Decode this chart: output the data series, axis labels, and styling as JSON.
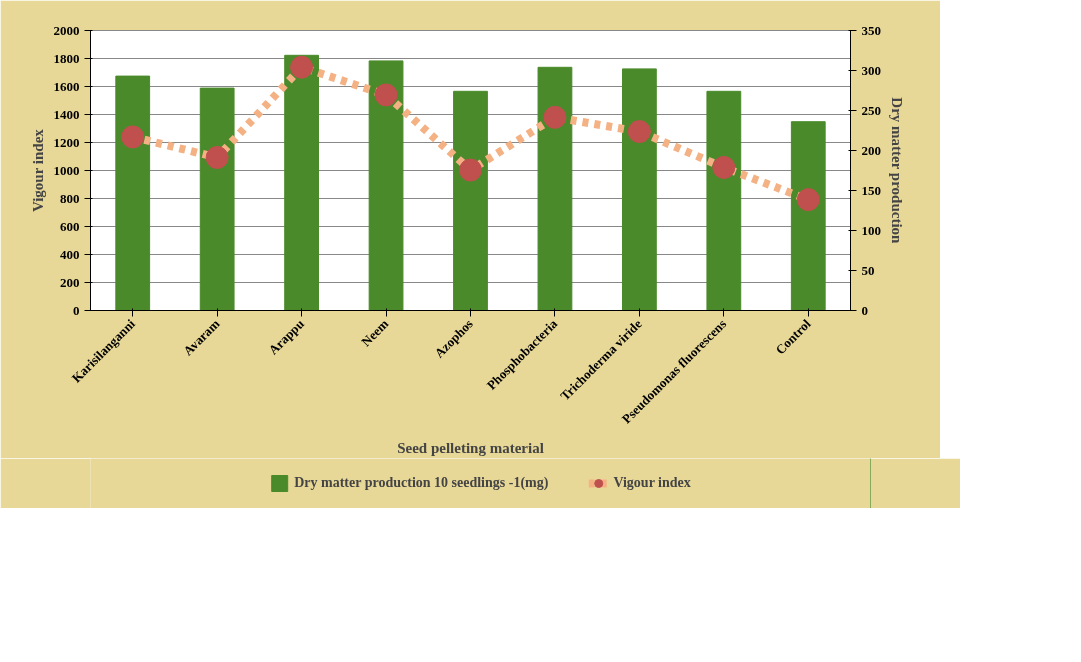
{
  "chart_data": {
    "type": "bar",
    "xlabel": "Seed pelleting material",
    "ylabel": "Vigour index",
    "y2label": "Dry matter production",
    "categories": [
      "Karisilanganni",
      "Avaram",
      "Arappu",
      "Neem",
      "Azophos",
      "Phosphobacteria",
      "Trichoderma viride",
      "Pseudomonas fluorescens",
      "Control"
    ],
    "series": [
      {
        "name": "Dry matter production 10 seedlings -1(mg)",
        "axis": "y2",
        "color": "#4a8a2a",
        "values": [
          293,
          278,
          319,
          312,
          274,
          304,
          302,
          274,
          236
        ]
      },
      {
        "name": "Vigour index",
        "type": "line",
        "color": "#f4b183",
        "marker": "circle",
        "line_style": "dashed",
        "values": [
          1240,
          1093,
          1738,
          1540,
          1003,
          1380,
          1278,
          1022,
          792
        ]
      }
    ],
    "ylim": [
      0,
      2000
    ],
    "yticks": [
      0,
      200,
      400,
      600,
      800,
      1000,
      1200,
      1400,
      1600,
      1800,
      2000
    ],
    "y2lim": [
      0,
      350
    ],
    "y2ticks": [
      0,
      50,
      100,
      150,
      200,
      250,
      300,
      350
    ],
    "grid": "y",
    "legend": "bottom"
  }
}
